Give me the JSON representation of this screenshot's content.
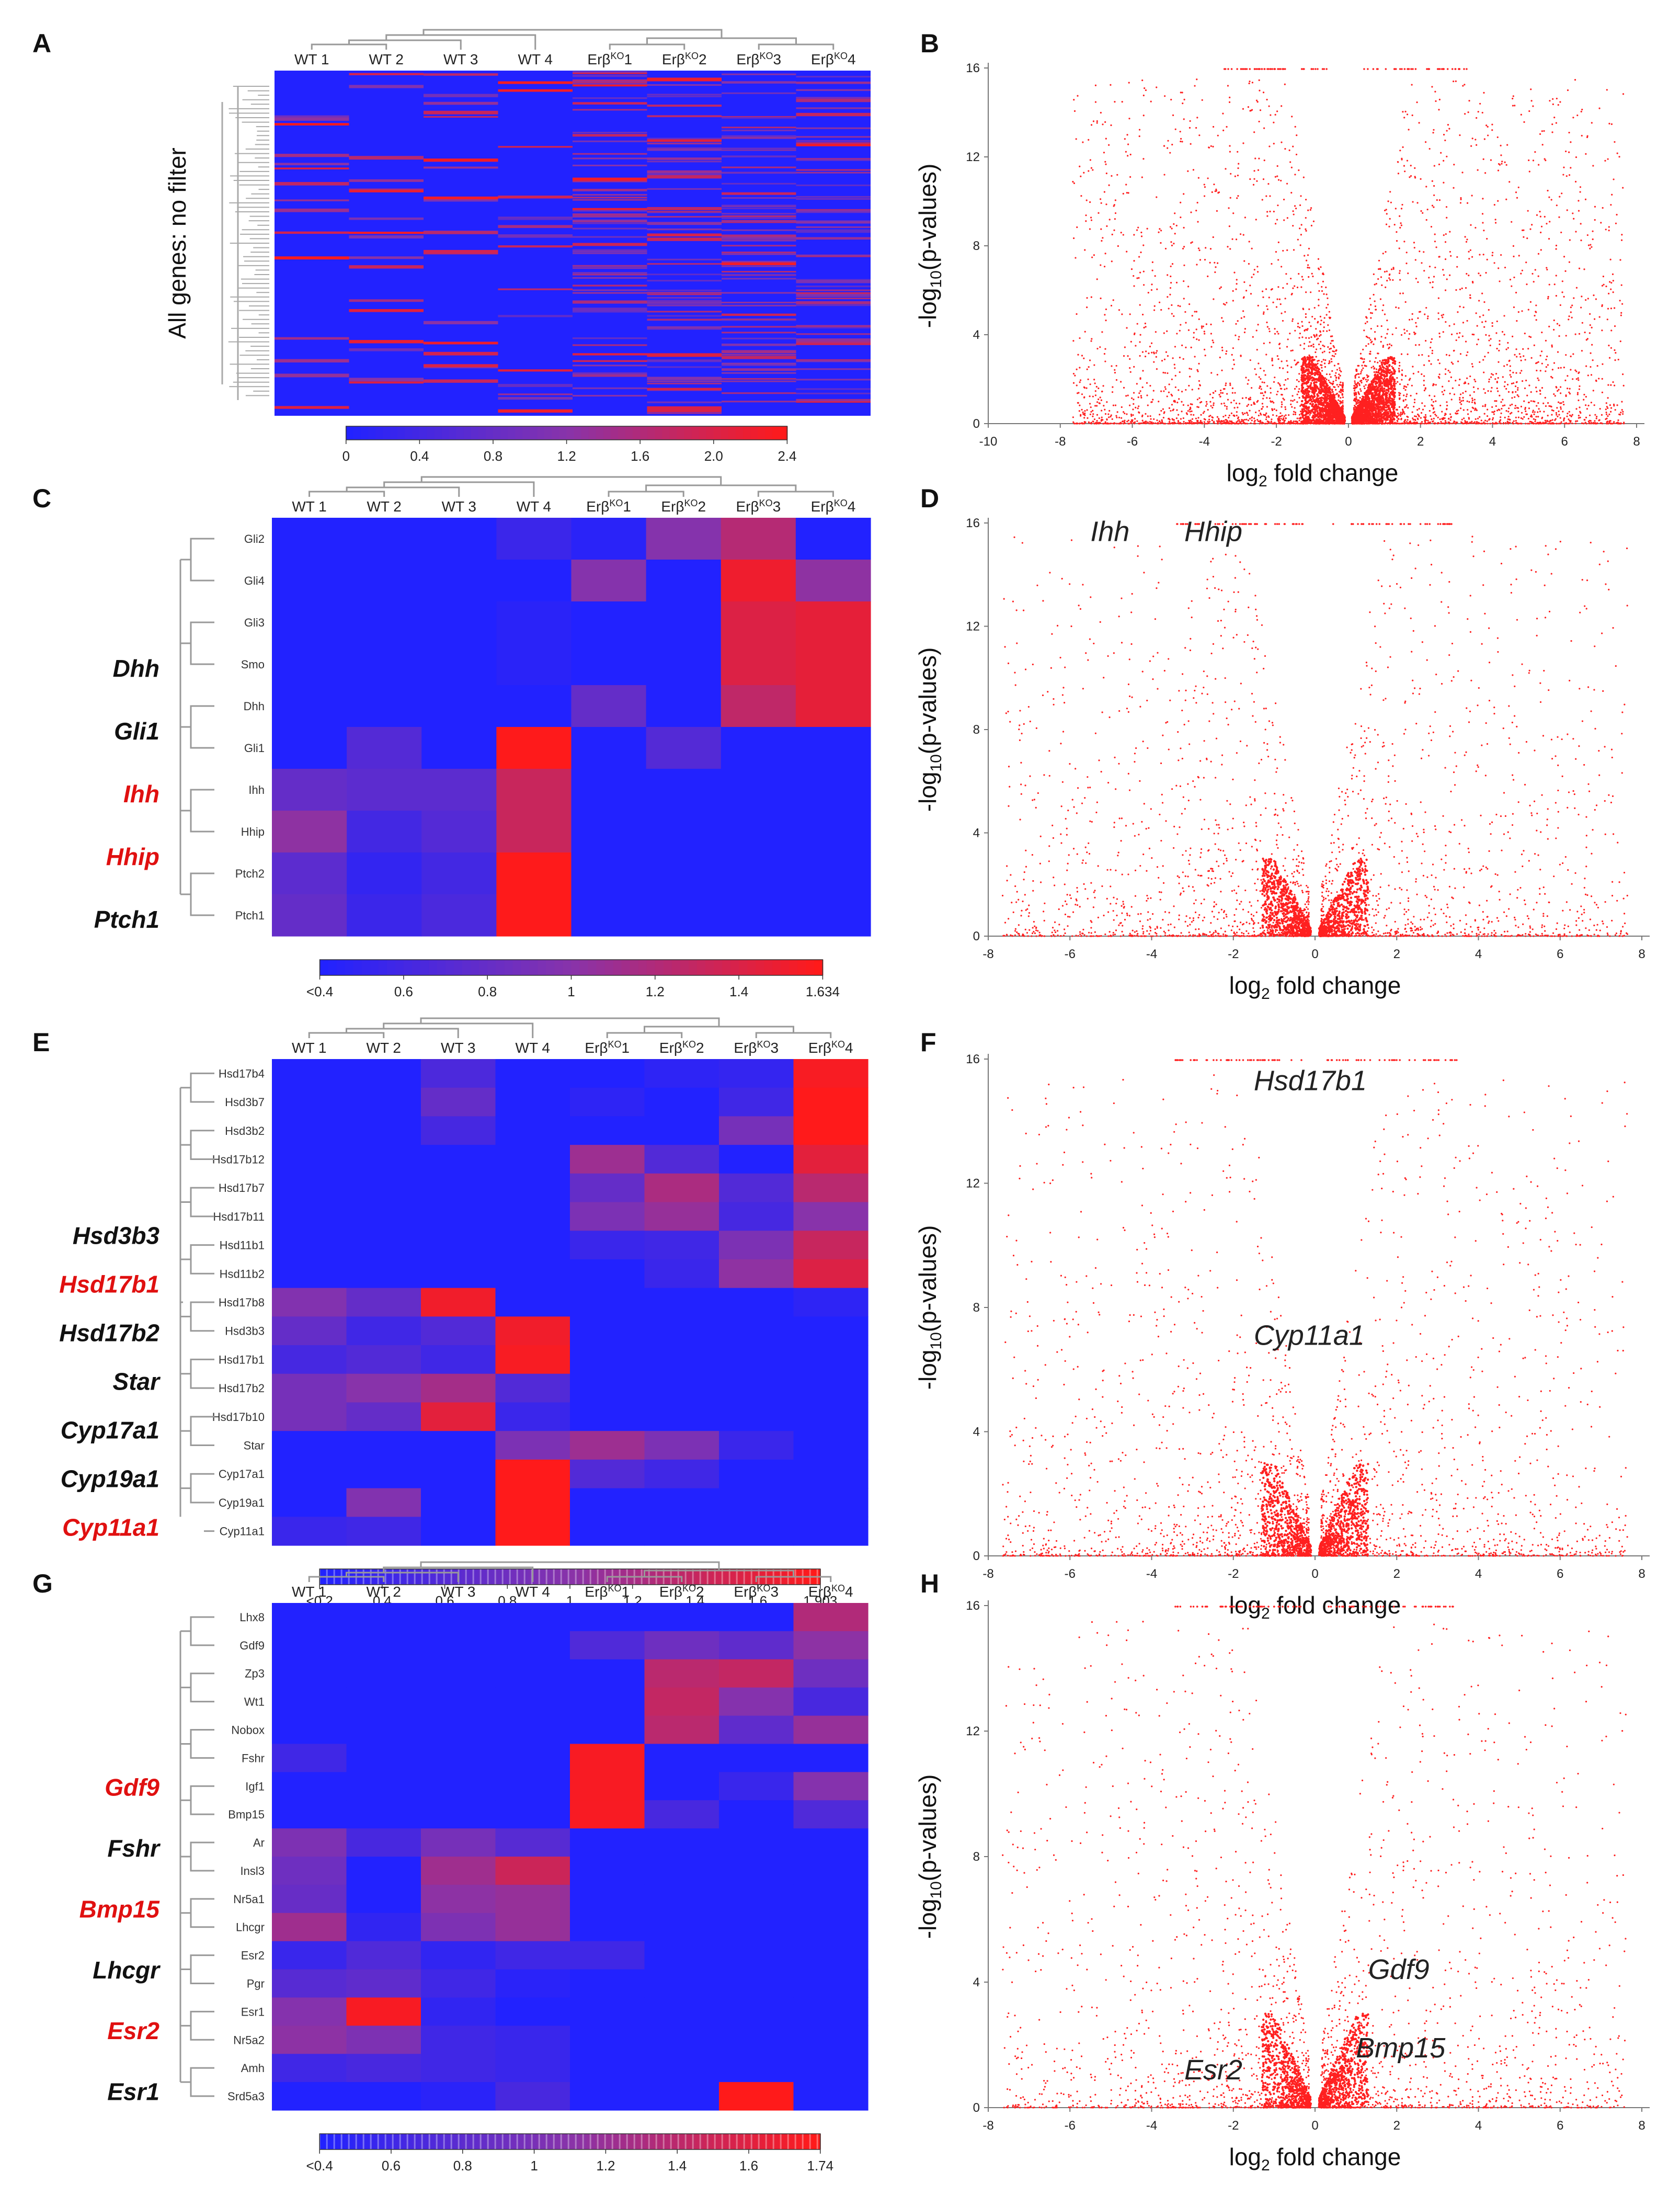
{
  "colors": {
    "low": "#2222ff",
    "mid": "#8833aa",
    "high": "#ff1a1a",
    "point": "#ff2020"
  },
  "panels": [
    {
      "id": "A",
      "label": "A"
    },
    {
      "id": "B",
      "label": "B"
    },
    {
      "id": "C",
      "label": "C"
    },
    {
      "id": "D",
      "label": "D"
    },
    {
      "id": "E",
      "label": "E"
    },
    {
      "id": "F",
      "label": "F"
    },
    {
      "id": "G",
      "label": "G"
    },
    {
      "id": "H",
      "label": "H"
    }
  ],
  "chart_data": [
    {
      "panel": "A",
      "type": "heatmap",
      "title": "",
      "ylabel": "All genes: no filter",
      "columns": [
        {
          "main": "WT 1",
          "sup": ""
        },
        {
          "main": "WT 2",
          "sup": ""
        },
        {
          "main": "WT 3",
          "sup": ""
        },
        {
          "main": "WT 4",
          "sup": ""
        },
        {
          "main": "Erβ",
          "sup": "KO",
          "suffix": "1"
        },
        {
          "main": "Erβ",
          "sup": "KO",
          "suffix": "2"
        },
        {
          "main": "Erβ",
          "sup": "KO",
          "suffix": "3"
        },
        {
          "main": "Erβ",
          "sup": "KO",
          "suffix": "4"
        }
      ],
      "rows": [],
      "values": "many genes (dense heatmap, mostly low expression with scattered high values)",
      "colorbar": {
        "ticks": [
          "0",
          "0.4",
          "0.8",
          "1.2",
          "1.6",
          "2.0",
          "2.4"
        ],
        "range": [
          0,
          2.4
        ]
      }
    },
    {
      "panel": "B",
      "type": "scatter",
      "xlabel": "log",
      "xlabel_sub": "2",
      "xlabel_rest": " fold change",
      "ylabel": "-log",
      "ylabel_sub": "10",
      "ylabel_rest": "(p-values)",
      "xlim": [
        -10,
        8
      ],
      "ylim": [
        0,
        16
      ],
      "xticks": [
        -10,
        -8,
        -6,
        -4,
        -2,
        0,
        2,
        4,
        6,
        8
      ],
      "yticks": [
        0,
        4,
        8,
        12,
        16
      ],
      "annotations": [],
      "density": "high"
    },
    {
      "panel": "C",
      "type": "heatmap",
      "columns": [
        {
          "main": "WT 1",
          "sup": ""
        },
        {
          "main": "WT 2",
          "sup": ""
        },
        {
          "main": "WT 3",
          "sup": ""
        },
        {
          "main": "WT 4",
          "sup": ""
        },
        {
          "main": "Erβ",
          "sup": "KO",
          "suffix": "1"
        },
        {
          "main": "Erβ",
          "sup": "KO",
          "suffix": "2"
        },
        {
          "main": "Erβ",
          "sup": "KO",
          "suffix": "3"
        },
        {
          "main": "Erβ",
          "sup": "KO",
          "suffix": "4"
        }
      ],
      "rows": [
        "Gli2",
        "Gli4",
        "Gli3",
        "Smo",
        "Dhh",
        "Gli1",
        "Ihh",
        "Hhip",
        "Ptch2",
        "Ptch1"
      ],
      "values": [
        [
          0.4,
          0.4,
          0.4,
          0.55,
          0.45,
          1.0,
          1.25,
          0.4
        ],
        [
          0.4,
          0.4,
          0.4,
          0.4,
          1.0,
          0.4,
          1.55,
          1.05
        ],
        [
          0.4,
          0.4,
          0.4,
          0.45,
          0.4,
          0.4,
          1.45,
          1.5
        ],
        [
          0.4,
          0.4,
          0.4,
          0.45,
          0.4,
          0.4,
          1.45,
          1.5
        ],
        [
          0.4,
          0.4,
          0.4,
          0.4,
          0.8,
          0.4,
          1.3,
          1.5
        ],
        [
          0.4,
          0.7,
          0.4,
          1.63,
          0.4,
          0.7,
          0.4,
          0.4
        ],
        [
          0.8,
          0.75,
          0.75,
          1.35,
          0.4,
          0.4,
          0.4,
          0.4
        ],
        [
          1.05,
          0.6,
          0.7,
          1.35,
          0.4,
          0.4,
          0.4,
          0.4
        ],
        [
          0.75,
          0.5,
          0.6,
          1.63,
          0.4,
          0.4,
          0.4,
          0.4
        ],
        [
          0.8,
          0.55,
          0.65,
          1.63,
          0.4,
          0.4,
          0.4,
          0.4
        ]
      ],
      "side_labels": [
        {
          "text": "Dhh",
          "color": "#111111"
        },
        {
          "text": "Gli1",
          "color": "#111111"
        },
        {
          "text": "Ihh",
          "color": "#e01010"
        },
        {
          "text": "Hhip",
          "color": "#e01010"
        },
        {
          "text": "Ptch1",
          "color": "#111111"
        }
      ],
      "colorbar": {
        "ticks": [
          "<0.4",
          "0.6",
          "0.8",
          "1",
          "1.2",
          "1.4",
          "1.634"
        ],
        "range": [
          0.4,
          1.634
        ]
      }
    },
    {
      "panel": "D",
      "type": "scatter",
      "xlabel": "log",
      "xlabel_sub": "2",
      "xlabel_rest": " fold change",
      "ylabel": "-log",
      "ylabel_sub": "10",
      "ylabel_rest": "(p-values)",
      "xlim": [
        -8,
        8
      ],
      "ylim": [
        0,
        16
      ],
      "xticks": [
        -8,
        -6,
        -4,
        -2,
        0,
        2,
        4,
        6,
        8
      ],
      "yticks": [
        0,
        4,
        8,
        12,
        16
      ],
      "annotations": [
        {
          "text": "Ihh",
          "x": -5.5,
          "y": 15.3
        },
        {
          "text": "Hhip",
          "x": -3.2,
          "y": 15.3
        }
      ],
      "density": "medium"
    },
    {
      "panel": "E",
      "type": "heatmap",
      "columns": [
        {
          "main": "WT 1",
          "sup": ""
        },
        {
          "main": "WT 2",
          "sup": ""
        },
        {
          "main": "WT 3",
          "sup": ""
        },
        {
          "main": "WT 4",
          "sup": ""
        },
        {
          "main": "Erβ",
          "sup": "KO",
          "suffix": "1"
        },
        {
          "main": "Erβ",
          "sup": "KO",
          "suffix": "2"
        },
        {
          "main": "Erβ",
          "sup": "KO",
          "suffix": "3"
        },
        {
          "main": "Erβ",
          "sup": "KO",
          "suffix": "4"
        }
      ],
      "rows": [
        "Hsd17b4",
        "Hsd3b7",
        "Hsd3b2",
        "Hsd17b12",
        "Hsd17b7",
        "Hsd17b11",
        "Hsd11b1",
        "Hsd11b2",
        "Hsd17b8",
        "Hsd3b3",
        "Hsd17b1",
        "Hsd17b2",
        "Hsd17b10",
        "Star",
        "Cyp17a1",
        "Cyp19a1",
        "Cyp11a1"
      ],
      "values": [
        [
          0.2,
          0.2,
          0.55,
          0.2,
          0.2,
          0.3,
          0.35,
          1.85
        ],
        [
          0.2,
          0.2,
          0.75,
          0.2,
          0.3,
          0.2,
          0.45,
          1.9
        ],
        [
          0.2,
          0.2,
          0.5,
          0.2,
          0.2,
          0.2,
          0.9,
          1.9
        ],
        [
          0.2,
          0.2,
          0.2,
          0.2,
          1.2,
          0.6,
          0.2,
          1.7
        ],
        [
          0.2,
          0.2,
          0.2,
          0.2,
          0.75,
          1.3,
          0.6,
          1.4
        ],
        [
          0.2,
          0.2,
          0.2,
          0.2,
          0.95,
          1.15,
          0.5,
          1.05
        ],
        [
          0.2,
          0.2,
          0.2,
          0.2,
          0.4,
          0.45,
          0.95,
          1.5
        ],
        [
          0.2,
          0.2,
          0.2,
          0.2,
          0.2,
          0.4,
          1.1,
          1.65
        ],
        [
          1.0,
          0.75,
          1.8,
          0.2,
          0.2,
          0.2,
          0.2,
          0.3
        ],
        [
          0.75,
          0.45,
          0.6,
          1.8,
          0.2,
          0.2,
          0.2,
          0.2
        ],
        [
          0.5,
          0.6,
          0.45,
          1.85,
          0.2,
          0.2,
          0.2,
          0.2
        ],
        [
          0.9,
          1.05,
          1.25,
          0.6,
          0.2,
          0.2,
          0.2,
          0.2
        ],
        [
          0.9,
          0.75,
          1.7,
          0.4,
          0.2,
          0.2,
          0.2,
          0.2
        ],
        [
          0.2,
          0.2,
          0.2,
          0.95,
          1.2,
          0.95,
          0.4,
          0.2
        ],
        [
          0.2,
          0.2,
          0.2,
          1.9,
          0.6,
          0.45,
          0.2,
          0.2
        ],
        [
          0.2,
          1.0,
          0.2,
          1.9,
          0.2,
          0.2,
          0.2,
          0.2
        ],
        [
          0.4,
          0.45,
          0.2,
          1.9,
          0.2,
          0.2,
          0.2,
          0.2
        ]
      ],
      "side_labels": [
        {
          "text": "Hsd3b3",
          "color": "#111111"
        },
        {
          "text": "Hsd17b1",
          "color": "#e01010"
        },
        {
          "text": "Hsd17b2",
          "color": "#111111"
        },
        {
          "text": "Star",
          "color": "#111111"
        },
        {
          "text": "Cyp17a1",
          "color": "#111111"
        },
        {
          "text": "Cyp19a1",
          "color": "#111111"
        },
        {
          "text": "Cyp11a1",
          "color": "#e01010"
        }
      ],
      "colorbar": {
        "ticks": [
          "<0.2",
          "0.4",
          "0.6",
          "0.8",
          "1",
          "1.2",
          "1.4",
          "1.6",
          "1.903"
        ],
        "range": [
          0.2,
          1.903
        ]
      }
    },
    {
      "panel": "F",
      "type": "scatter",
      "xlabel": "log",
      "xlabel_sub": "2",
      "xlabel_rest": " fold change",
      "ylabel": "-log",
      "ylabel_sub": "10",
      "ylabel_rest": "(p-values)",
      "xlim": [
        -8,
        8
      ],
      "ylim": [
        0,
        16
      ],
      "xticks": [
        -8,
        -6,
        -4,
        -2,
        0,
        2,
        4,
        6,
        8
      ],
      "yticks": [
        0,
        4,
        8,
        12,
        16
      ],
      "annotations": [
        {
          "text": "Hsd17b1",
          "x": -1.5,
          "y": 15.0
        },
        {
          "text": "Cyp11a1",
          "x": -1.5,
          "y": 6.8
        }
      ],
      "density": "medium"
    },
    {
      "panel": "G",
      "type": "heatmap",
      "columns": [
        {
          "main": "WT 1",
          "sup": ""
        },
        {
          "main": "WT 2",
          "sup": ""
        },
        {
          "main": "WT 3",
          "sup": ""
        },
        {
          "main": "WT 4",
          "sup": ""
        },
        {
          "main": "Erβ",
          "sup": "KO",
          "suffix": "1"
        },
        {
          "main": "Erβ",
          "sup": "KO",
          "suffix": "2"
        },
        {
          "main": "Erβ",
          "sup": "KO",
          "suffix": "3"
        },
        {
          "main": "Erβ",
          "sup": "KO",
          "suffix": "4"
        }
      ],
      "rows": [
        "Lhx8",
        "Gdf9",
        "Zp3",
        "Wt1",
        "Nobox",
        "Fshr",
        "Igf1",
        "Bmp15",
        "Ar",
        "Insl3",
        "Nr5a1",
        "Lhcgr",
        "Esr2",
        "Pgr",
        "Esr1",
        "Nr5a2",
        "Amh",
        "Srd5a3"
      ],
      "values": [
        [
          0.4,
          0.4,
          0.4,
          0.4,
          0.4,
          0.4,
          0.4,
          1.3
        ],
        [
          0.4,
          0.4,
          0.4,
          0.4,
          0.7,
          0.9,
          0.8,
          1.1
        ],
        [
          0.4,
          0.4,
          0.4,
          0.4,
          0.4,
          1.35,
          1.4,
          0.9
        ],
        [
          0.4,
          0.4,
          0.4,
          0.4,
          0.4,
          1.4,
          1.05,
          0.65
        ],
        [
          0.4,
          0.4,
          0.4,
          0.4,
          0.4,
          1.35,
          0.8,
          1.15
        ],
        [
          0.6,
          0.4,
          0.4,
          0.4,
          1.7,
          0.4,
          0.4,
          0.4
        ],
        [
          0.4,
          0.4,
          0.4,
          0.4,
          1.7,
          0.4,
          0.55,
          1.05
        ],
        [
          0.4,
          0.4,
          0.4,
          0.4,
          1.7,
          0.65,
          0.4,
          0.7
        ],
        [
          1.0,
          0.65,
          0.95,
          0.75,
          0.4,
          0.4,
          0.4,
          0.4
        ],
        [
          0.9,
          0.4,
          1.2,
          1.45,
          0.4,
          0.4,
          0.4,
          0.4
        ],
        [
          0.85,
          0.4,
          1.1,
          1.15,
          0.4,
          0.4,
          0.4,
          0.4
        ],
        [
          1.2,
          0.5,
          1.0,
          1.15,
          0.4,
          0.4,
          0.4,
          0.4
        ],
        [
          0.55,
          0.7,
          0.5,
          0.6,
          0.6,
          0.4,
          0.4,
          0.4
        ],
        [
          0.75,
          0.8,
          0.6,
          0.45,
          0.4,
          0.4,
          0.4,
          0.4
        ],
        [
          1.05,
          1.7,
          0.5,
          0.4,
          0.4,
          0.4,
          0.4,
          0.4
        ],
        [
          1.1,
          1.0,
          0.6,
          0.55,
          0.4,
          0.4,
          0.4,
          0.4
        ],
        [
          0.6,
          0.65,
          0.6,
          0.55,
          0.4,
          0.4,
          0.4,
          0.4
        ],
        [
          0.4,
          0.4,
          0.45,
          0.65,
          0.4,
          0.4,
          1.74,
          0.4
        ]
      ],
      "side_labels": [
        {
          "text": "Gdf9",
          "color": "#e01010"
        },
        {
          "text": "Fshr",
          "color": "#111111"
        },
        {
          "text": "Bmp15",
          "color": "#e01010"
        },
        {
          "text": "Lhcgr",
          "color": "#111111"
        },
        {
          "text": "Esr2",
          "color": "#e01010"
        },
        {
          "text": "Esr1",
          "color": "#111111"
        }
      ],
      "colorbar": {
        "ticks": [
          "<0.4",
          "0.6",
          "0.8",
          "1",
          "1.2",
          "1.4",
          "1.6",
          "1.74"
        ],
        "range": [
          0.4,
          1.74
        ]
      }
    },
    {
      "panel": "H",
      "type": "scatter",
      "xlabel": "log",
      "xlabel_sub": "2",
      "xlabel_rest": " fold change",
      "ylabel": "-log",
      "ylabel_sub": "10",
      "ylabel_rest": "(p-values)",
      "xlim": [
        -8,
        8
      ],
      "ylim": [
        0,
        16
      ],
      "xticks": [
        -8,
        -6,
        -4,
        -2,
        0,
        2,
        4,
        6,
        8
      ],
      "yticks": [
        0,
        4,
        8,
        12,
        16
      ],
      "annotations": [
        {
          "text": "Gdf9",
          "x": 1.3,
          "y": 4.1
        },
        {
          "text": "Bmp15",
          "x": 1.0,
          "y": 1.6
        },
        {
          "text": "Esr2",
          "x": -3.2,
          "y": 0.9
        }
      ],
      "density": "medium"
    }
  ]
}
